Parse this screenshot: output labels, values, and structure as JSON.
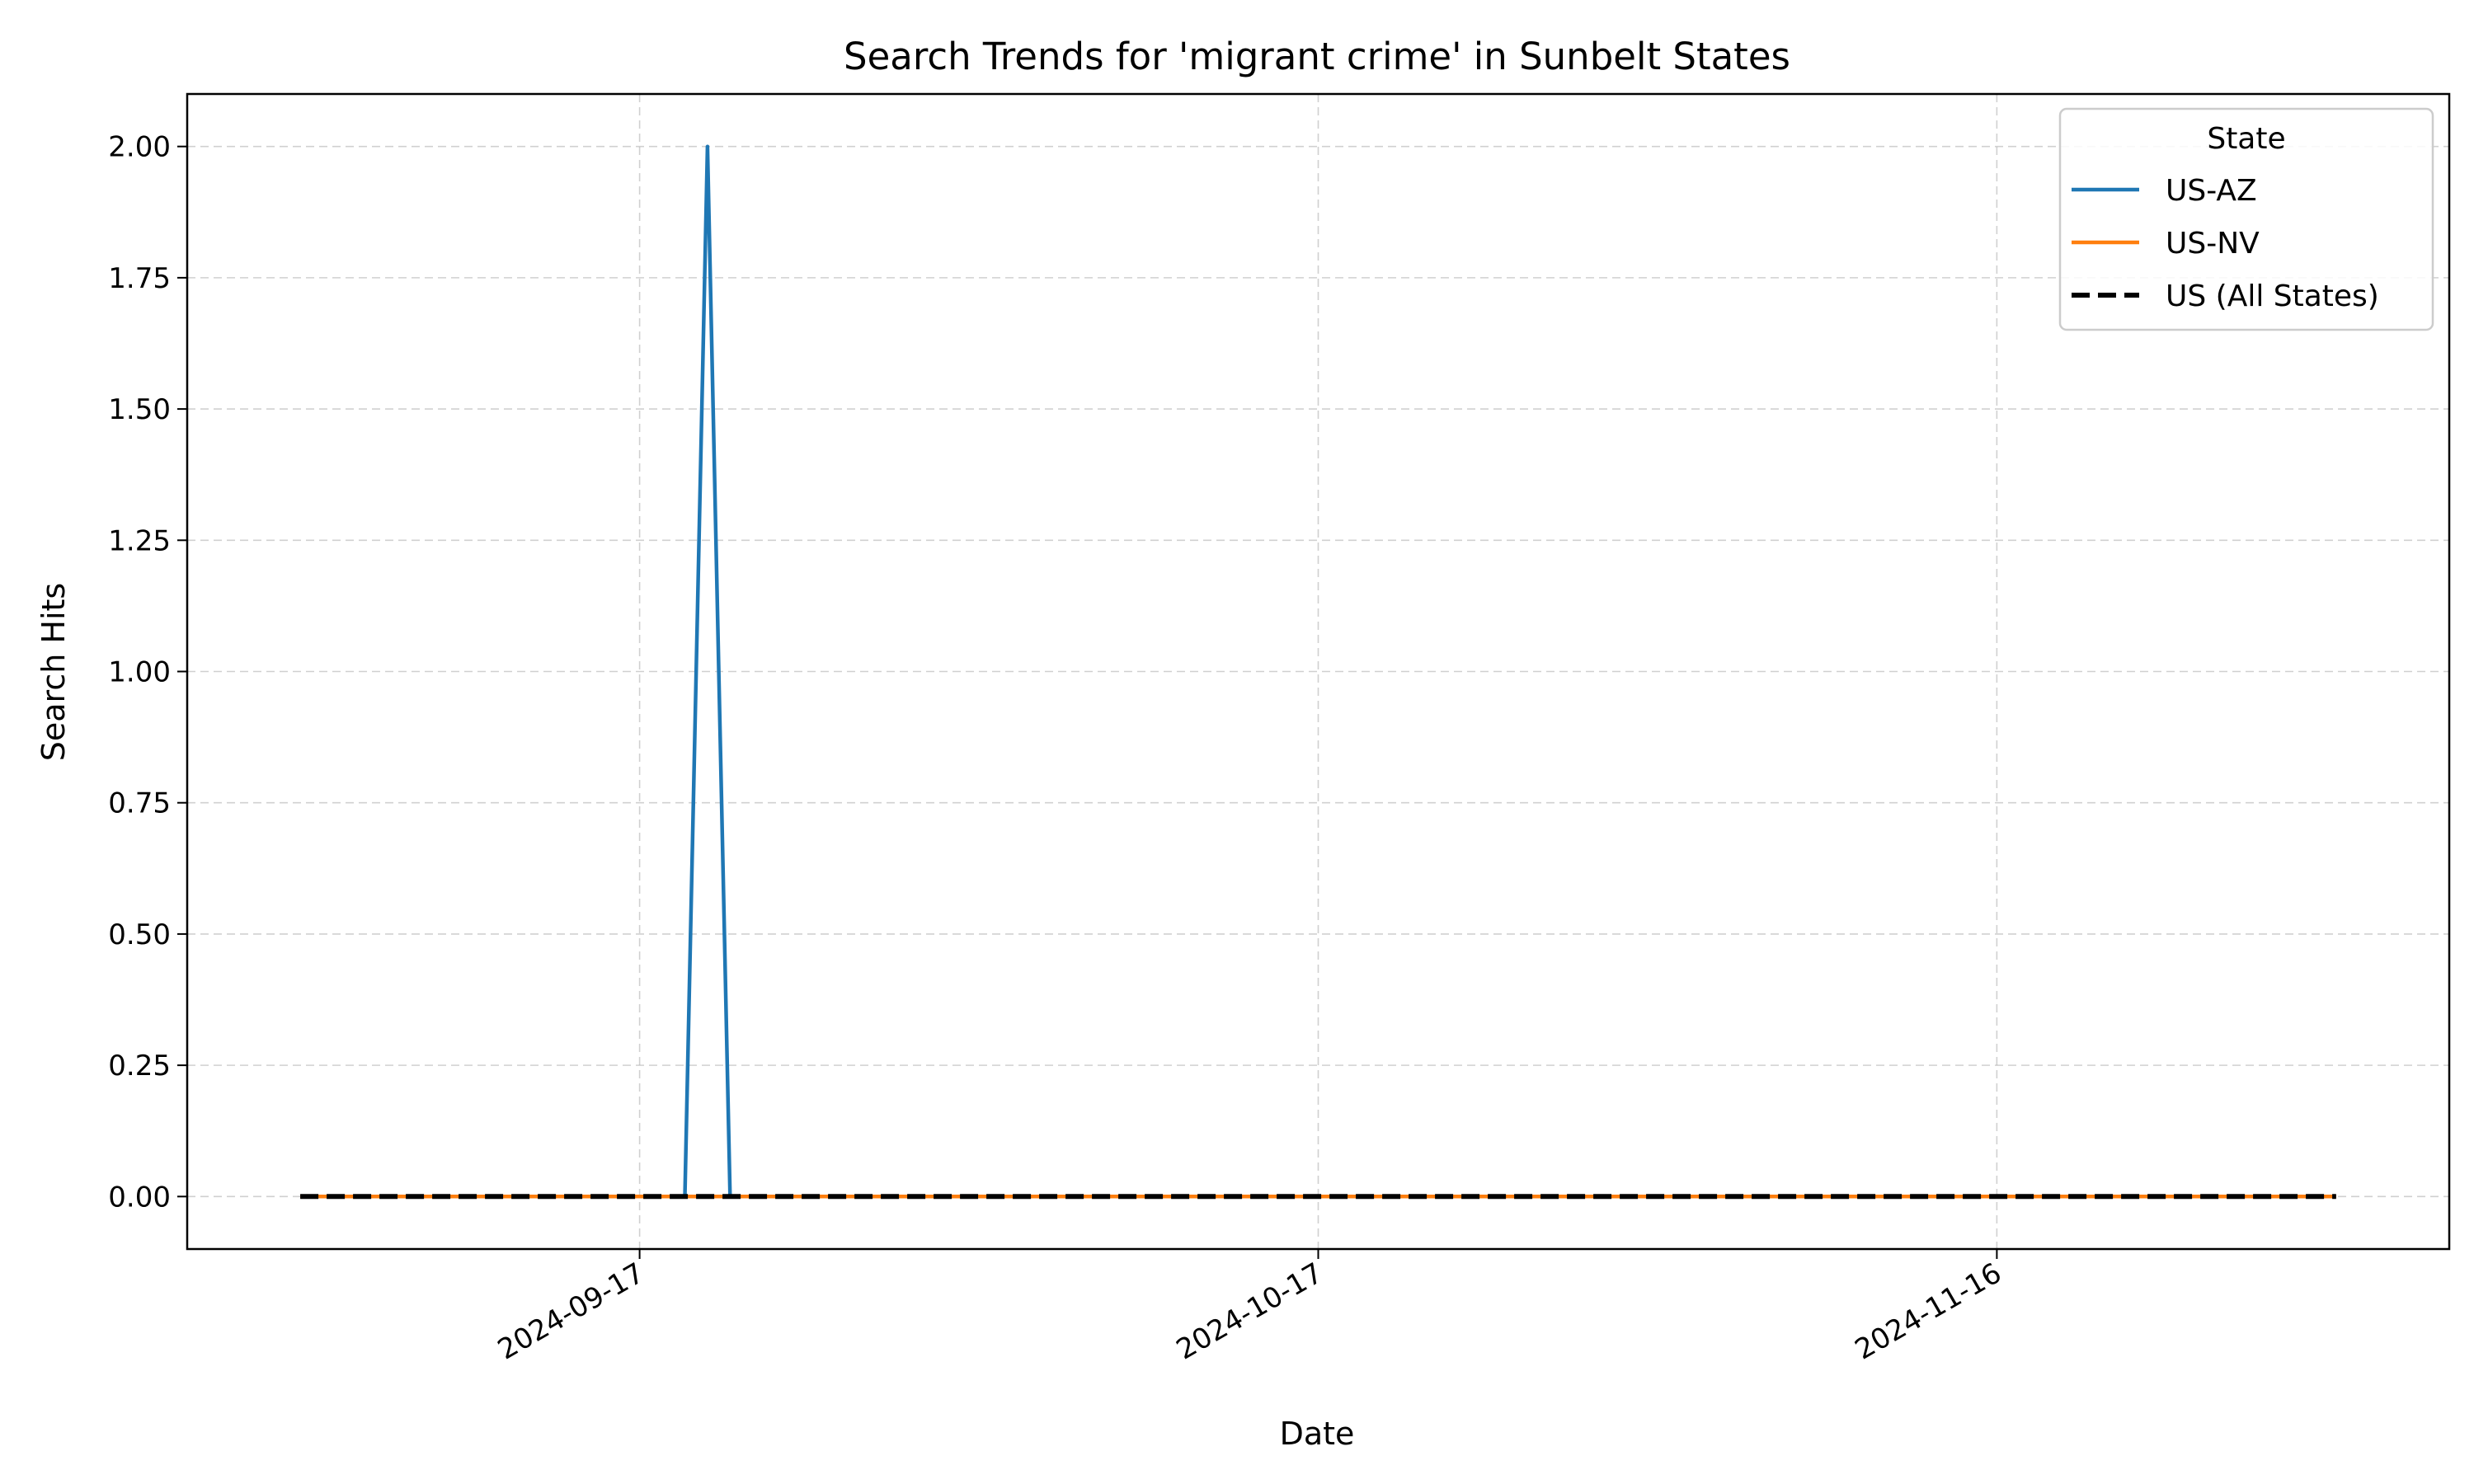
{
  "chart_data": {
    "type": "line",
    "title": "Search Trends for 'migrant crime' in Sunbelt States",
    "xlabel": "Date",
    "ylabel": "Search Hits",
    "x_start": "2024-09-02",
    "x_end": "2024-12-01",
    "xlim": [
      "2024-08-28",
      "2024-12-06"
    ],
    "ylim": [
      -0.1,
      2.1
    ],
    "x_ticks": [
      "2024-09-17",
      "2024-10-17",
      "2024-11-16"
    ],
    "y_ticks": [
      0.0,
      0.25,
      0.5,
      0.75,
      1.0,
      1.25,
      1.5,
      1.75,
      2.0
    ],
    "y_tick_labels": [
      "0.00",
      "0.25",
      "0.50",
      "0.75",
      "1.00",
      "1.25",
      "1.50",
      "1.75",
      "2.00"
    ],
    "grid": true,
    "legend": {
      "title": "State",
      "placement": "top-right"
    },
    "series": [
      {
        "name": "US-AZ",
        "color": "#1f77b4",
        "style": "solid",
        "points": [
          [
            "2024-09-02",
            0
          ],
          [
            "2024-09-19",
            0
          ],
          [
            "2024-09-20",
            2
          ],
          [
            "2024-09-21",
            0
          ],
          [
            "2024-12-01",
            0
          ]
        ]
      },
      {
        "name": "US-NV",
        "color": "#ff7f0e",
        "style": "solid",
        "points": [
          [
            "2024-09-02",
            0
          ],
          [
            "2024-12-01",
            0
          ]
        ]
      },
      {
        "name": "US (All States)",
        "color": "#000000",
        "style": "dashed",
        "points": [
          [
            "2024-09-02",
            0
          ],
          [
            "2024-12-01",
            0
          ]
        ]
      }
    ]
  }
}
